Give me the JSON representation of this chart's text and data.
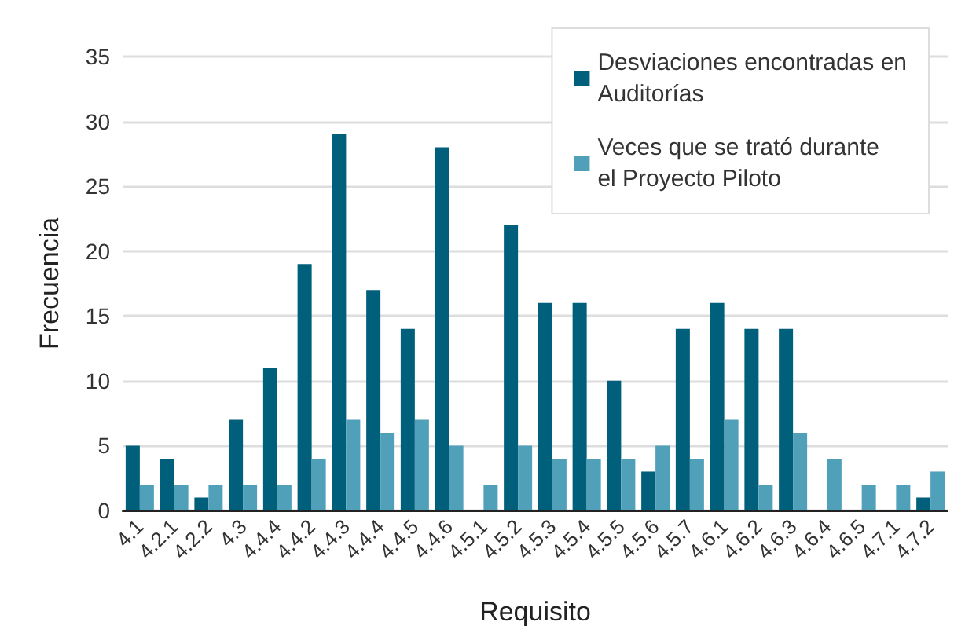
{
  "chart_data": {
    "type": "bar",
    "xlabel": "Requisito",
    "ylabel": "Frecuencia",
    "categories": [
      "4.1",
      "4.2.1",
      "4.2.2",
      "4.3",
      "4.4.4",
      "4.4.2",
      "4.4.3",
      "4.4.4",
      "4.4.5",
      "4.4.6",
      "4.5.1",
      "4.5.2",
      "4.5.3",
      "4.5.4",
      "4.5.5",
      "4.5.6",
      "4.5.7",
      "4.6.1",
      "4.6.2",
      "4.6.3",
      "4.6.4",
      "4.6.5",
      "4.7.1",
      "4.7.2"
    ],
    "series": [
      {
        "name": "Desviaciones encontradas en Auditorías",
        "color": "#005f7a",
        "values": [
          5,
          4,
          1,
          7,
          11,
          19,
          29,
          17,
          14,
          28,
          0,
          22,
          16,
          16,
          10,
          3,
          14,
          16,
          14,
          14,
          0,
          0,
          0,
          1
        ]
      },
      {
        "name": "Veces que se trató durante el Proyecto Piloto",
        "color": "#4fa0b8",
        "values": [
          2,
          2,
          2,
          2,
          2,
          4,
          7,
          6,
          7,
          5,
          2,
          5,
          4,
          4,
          4,
          5,
          4,
          7,
          2,
          6,
          4,
          2,
          2,
          3
        ]
      }
    ],
    "ylim": [
      0,
      35
    ],
    "yticks": [
      0,
      5,
      10,
      15,
      20,
      25,
      30,
      35
    ],
    "grid": "y",
    "legend": "top right"
  }
}
